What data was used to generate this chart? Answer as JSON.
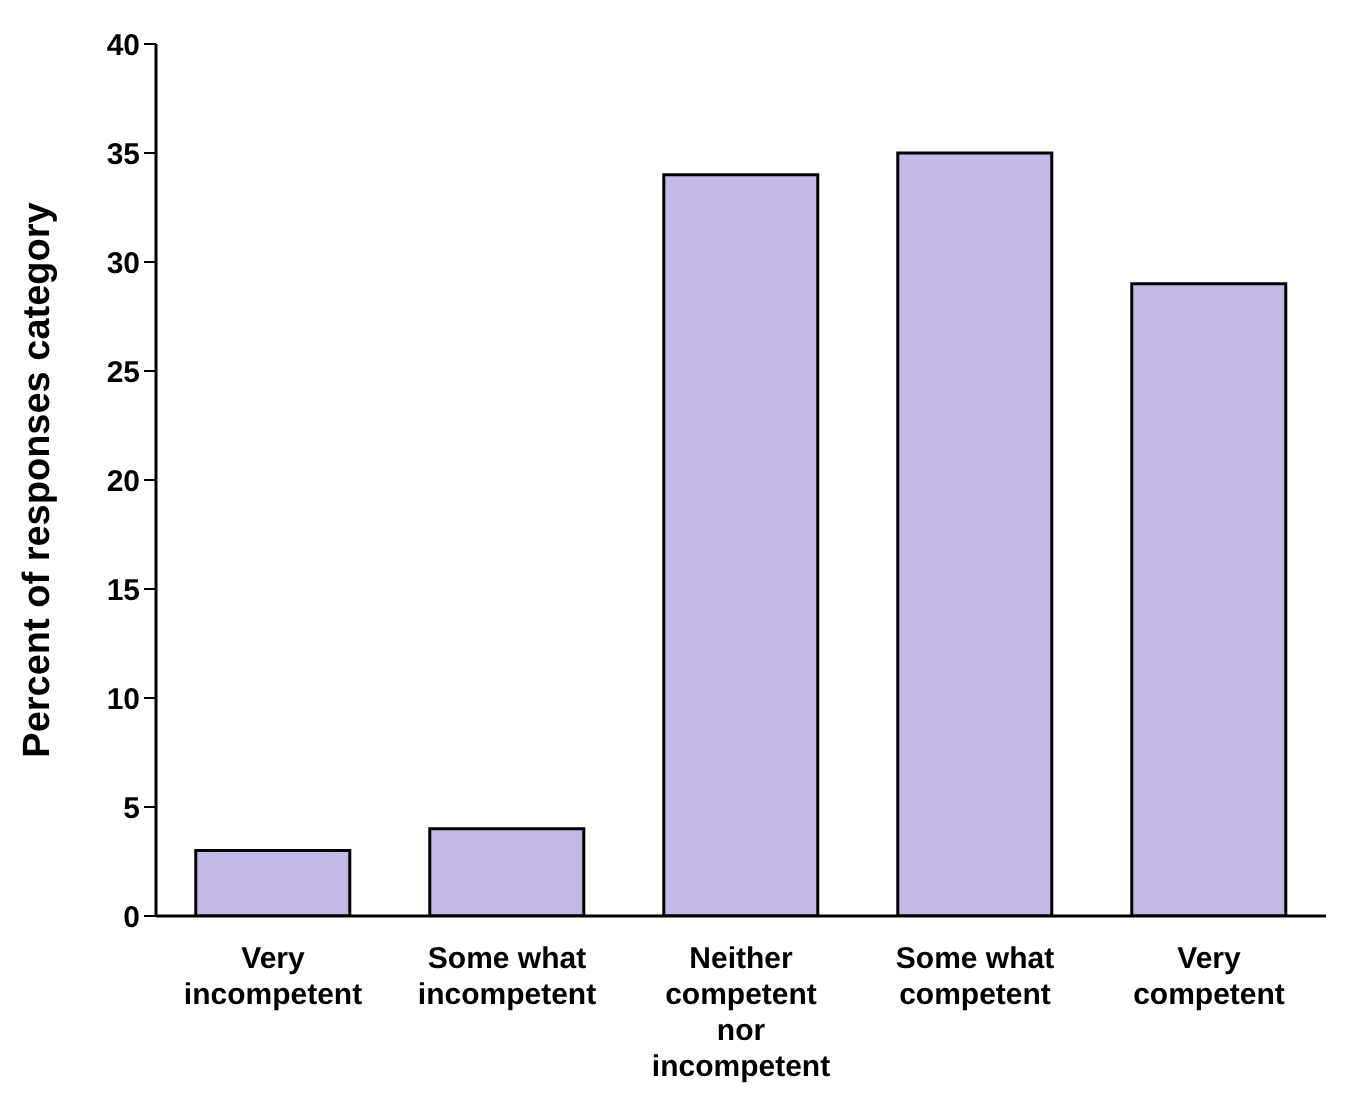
{
  "chart_data": {
    "type": "bar",
    "ylabel": "Percent of responses category",
    "categories": [
      "Very incompetent",
      "Some what incompetent",
      "Neither competent nor incompetent",
      "Some what competent",
      "Very competent"
    ],
    "values": [
      3,
      4,
      34,
      35,
      29
    ],
    "color": "#c4b8e6",
    "ylim": [
      0,
      40
    ],
    "yticks": [
      0,
      5,
      10,
      15,
      20,
      25,
      30,
      35,
      40
    ],
    "grid": false,
    "legend": false
  }
}
